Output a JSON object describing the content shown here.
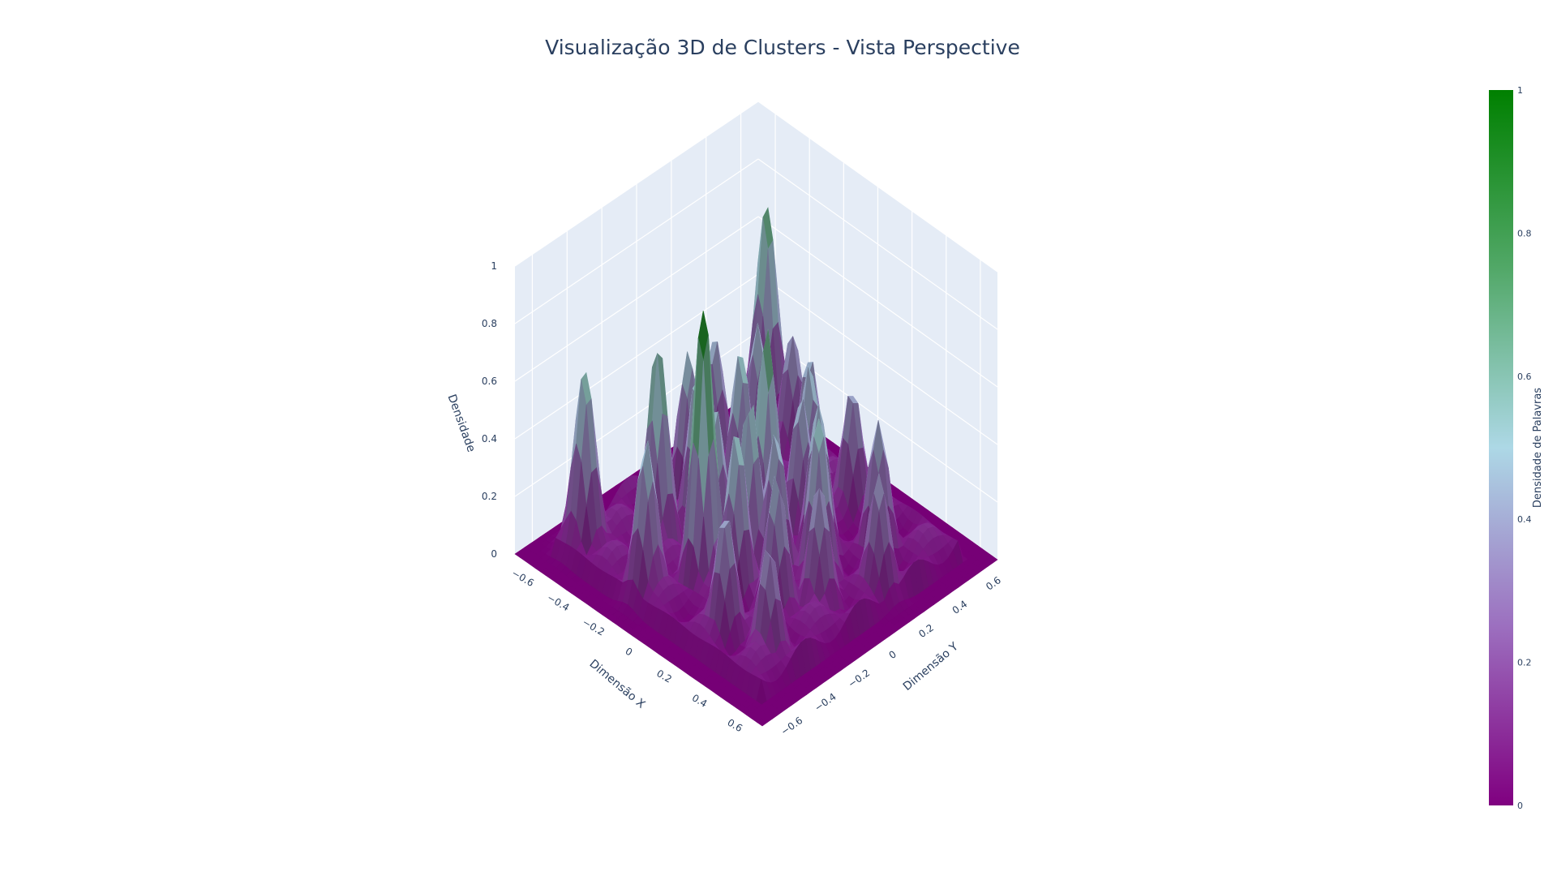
{
  "title": "Visualização 3D de Clusters - Vista Perspective",
  "chart_data": {
    "type": "surface",
    "title": "Visualização 3D de Clusters - Vista Perspective",
    "x_axis": {
      "label": "Dimensão X",
      "range": [
        -0.7,
        0.7
      ],
      "ticks": [
        "−0.6",
        "−0.4",
        "−0.2",
        "0",
        "0.2",
        "0.4",
        "0.6"
      ],
      "tick_values": [
        -0.6,
        -0.4,
        -0.2,
        0,
        0.2,
        0.4,
        0.6
      ]
    },
    "y_axis": {
      "label": "Dimensão Y",
      "range": [
        -0.7,
        0.7
      ],
      "ticks": [
        "−0.6",
        "−0.4",
        "−0.2",
        "0",
        "0.2",
        "0.4",
        "0.6"
      ],
      "tick_values": [
        -0.6,
        -0.4,
        -0.2,
        0,
        0.2,
        0.4,
        0.6
      ]
    },
    "z_axis": {
      "label": "Densidade",
      "range": [
        0,
        1
      ],
      "ticks": [
        "0",
        "0.2",
        "0.4",
        "0.6",
        "0.8",
        "1"
      ],
      "tick_values": [
        0,
        0.2,
        0.4,
        0.6,
        0.8,
        1
      ]
    },
    "colorbar": {
      "title": "Densidade de Palavras",
      "range": [
        0,
        1
      ],
      "ticks": [
        "0",
        "0.2",
        "0.4",
        "0.6",
        "0.8",
        "1"
      ],
      "tick_values": [
        0,
        0.2,
        0.4,
        0.6,
        0.8,
        1
      ]
    },
    "colorscale": [
      [
        0,
        "#800080"
      ],
      [
        0.25,
        "#9c6fbf"
      ],
      [
        0.5,
        "#add8e6"
      ],
      [
        0.75,
        "#52a868"
      ],
      [
        1,
        "#008000"
      ]
    ],
    "grid": true,
    "background": "#e5ecf6",
    "peaks": [
      {
        "x": -0.02,
        "y": -0.3,
        "z": 1.0
      },
      {
        "x": -0.55,
        "y": 0.6,
        "z": 0.76
      },
      {
        "x": -0.3,
        "y": -0.28,
        "z": 0.74
      },
      {
        "x": -0.52,
        "y": -0.48,
        "z": 0.64
      },
      {
        "x": 0.0,
        "y": 0.05,
        "z": 0.78
      },
      {
        "x": 0.05,
        "y": -0.1,
        "z": 0.62
      },
      {
        "x": 0.12,
        "y": -0.25,
        "z": 0.6
      },
      {
        "x": 0.3,
        "y": 0.05,
        "z": 0.6
      },
      {
        "x": 0.2,
        "y": 0.15,
        "z": 0.56
      },
      {
        "x": -0.2,
        "y": 0.1,
        "z": 0.6
      },
      {
        "x": 0.4,
        "y": -0.05,
        "z": 0.45
      },
      {
        "x": 0.35,
        "y": 0.35,
        "z": 0.48
      },
      {
        "x": -0.35,
        "y": 0.35,
        "z": 0.52
      },
      {
        "x": -0.1,
        "y": 0.4,
        "z": 0.5
      },
      {
        "x": 0.1,
        "y": 0.45,
        "z": 0.45
      },
      {
        "x": -0.4,
        "y": 0.0,
        "z": 0.55
      },
      {
        "x": 0.45,
        "y": -0.4,
        "z": 0.4
      },
      {
        "x": 0.25,
        "y": -0.45,
        "z": 0.45
      },
      {
        "x": -0.15,
        "y": -0.5,
        "z": 0.55
      },
      {
        "x": 0.5,
        "y": 0.2,
        "z": 0.42
      },
      {
        "x": -0.45,
        "y": 0.2,
        "z": 0.5
      },
      {
        "x": 0.15,
        "y": -0.05,
        "z": 0.52
      },
      {
        "x": -0.25,
        "y": -0.1,
        "z": 0.58
      },
      {
        "x": 0.0,
        "y": 0.3,
        "z": 0.55
      },
      {
        "x": -0.3,
        "y": 0.5,
        "z": 0.45
      },
      {
        "x": 0.3,
        "y": -0.2,
        "z": 0.5
      },
      {
        "x": -0.1,
        "y": -0.15,
        "z": 0.55
      },
      {
        "x": 0.05,
        "y": 0.2,
        "z": 0.5
      }
    ]
  }
}
